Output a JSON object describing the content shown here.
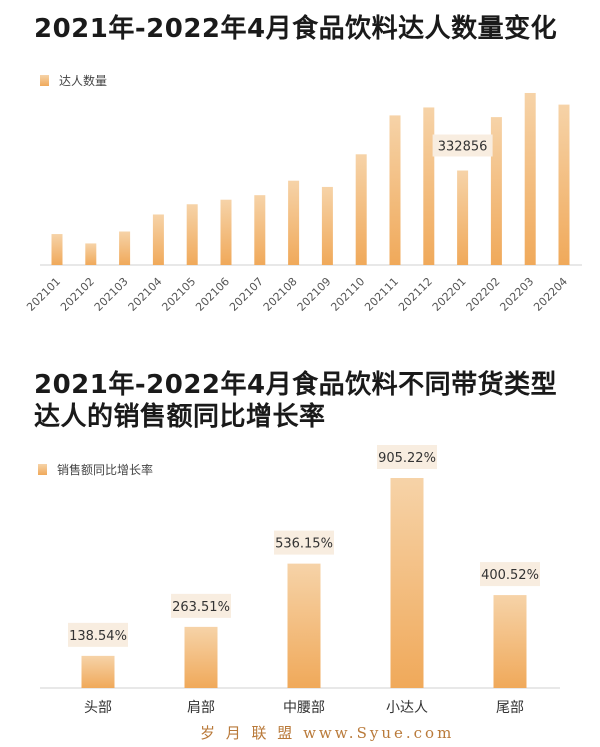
{
  "colors": {
    "bar_top": "#f6d3a8",
    "bar_bottom": "#f0a95a",
    "label_bg": "#f8ede0",
    "axis": "#d0d0d0"
  },
  "chart_data": [
    {
      "type": "bar",
      "title": "2021年-2022年4月食品饮料达人数量变化",
      "legend": {
        "position": "top-left",
        "entries": [
          "达人数量"
        ]
      },
      "categories": [
        "202101",
        "202102",
        "202103",
        "202104",
        "202105",
        "202106",
        "202107",
        "202108",
        "202109",
        "202110",
        "202111",
        "202112",
        "202201",
        "202202",
        "202203",
        "202204"
      ],
      "series": [
        {
          "name": "达人数量",
          "values": [
            109000,
            76000,
            118000,
            178000,
            214000,
            230000,
            246000,
            297000,
            275000,
            390000,
            527000,
            555000,
            332856,
            521000,
            606000,
            565000
          ]
        }
      ],
      "annotations": [
        {
          "category": "202201",
          "label": "332856"
        }
      ],
      "ylim": [
        0,
        620000
      ],
      "grid": false
    },
    {
      "type": "bar",
      "title_lines": [
        "2021年-2022年4月食品饮料不同带货类型",
        "达人的销售额同比增长率"
      ],
      "legend": {
        "position": "top-left",
        "entries": [
          "销售额同比增长率"
        ]
      },
      "categories": [
        "头部",
        "肩部",
        "中腰部",
        "小达人",
        "尾部"
      ],
      "series": [
        {
          "name": "销售额同比增长率",
          "values": [
            138.54,
            263.51,
            536.15,
            905.22,
            400.52
          ],
          "labels": [
            "138.54%",
            "263.51%",
            "536.15%",
            "905.22%",
            "400.52%"
          ]
        }
      ],
      "ylim": [
        0,
        905.22
      ],
      "grid": false
    }
  ],
  "watermark": "岁 月 联 盟   www.Syue.com"
}
